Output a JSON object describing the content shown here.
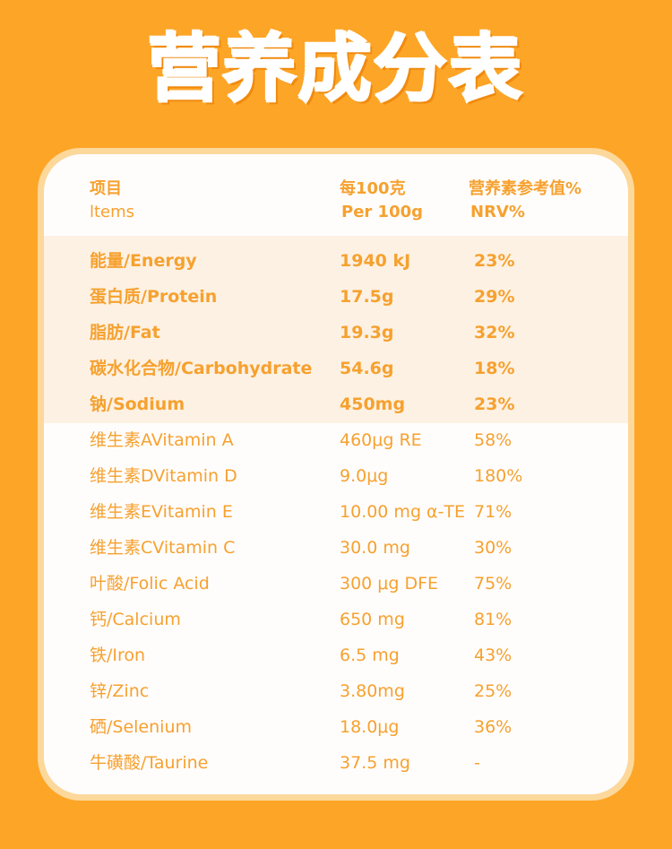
{
  "title": "营养成分表",
  "header": {
    "col1": [
      "项目",
      "ltems"
    ],
    "col2": [
      "每100克",
      "Per 100g"
    ],
    "col3": [
      "营养素参考值%",
      "NRV%"
    ]
  },
  "highlighted_rows": [
    {
      "item": "能量/Energy",
      "amount": "1940 kJ",
      "nrv": "23%"
    },
    {
      "item": "蛋白质/Protein",
      "amount": "17.5g",
      "nrv": "29%"
    },
    {
      "item": "脂肪/Fat",
      "amount": "19.3g",
      "nrv": "32%"
    },
    {
      "item": "碳水化合物/Carbohydrate",
      "amount": "54.6g",
      "nrv": "18%"
    },
    {
      "item": "钠/Sodium",
      "amount": "450mg",
      "nrv": "23%"
    }
  ],
  "rows": [
    {
      "item": "维生素AVitamin A",
      "amount": "460μg RE",
      "nrv": "58%"
    },
    {
      "item": "维生素DVitamin D",
      "amount": "9.0μg",
      "nrv": "180%"
    },
    {
      "item": "维生素EVitamin E",
      "amount": "10.00 mg α-TE",
      "nrv": "71%"
    },
    {
      "item": "维生素CVitamin C",
      "amount": "30.0 mg",
      "nrv": "30%"
    },
    {
      "item": "叶酸/Folic Acid",
      "amount": "300 μg DFE",
      "nrv": "75%"
    },
    {
      "item": "钙/Calcium",
      "amount": "650 mg",
      "nrv": "81%"
    },
    {
      "item": "铁/Iron",
      "amount": "6.5 mg",
      "nrv": "43%"
    },
    {
      "item": "锌/Zinc",
      "amount": "3.80mg",
      "nrv": "25%"
    },
    {
      "item": "硒/Selenium",
      "amount": "18.0μg",
      "nrv": "36%"
    },
    {
      "item": "牛磺酸/Taurine",
      "amount": "37.5 mg",
      "nrv": "-"
    }
  ],
  "colors": {
    "background": "#FDA527",
    "text": "#F6A12F",
    "band": "#FDF1E3",
    "border": "#FCD89B"
  }
}
